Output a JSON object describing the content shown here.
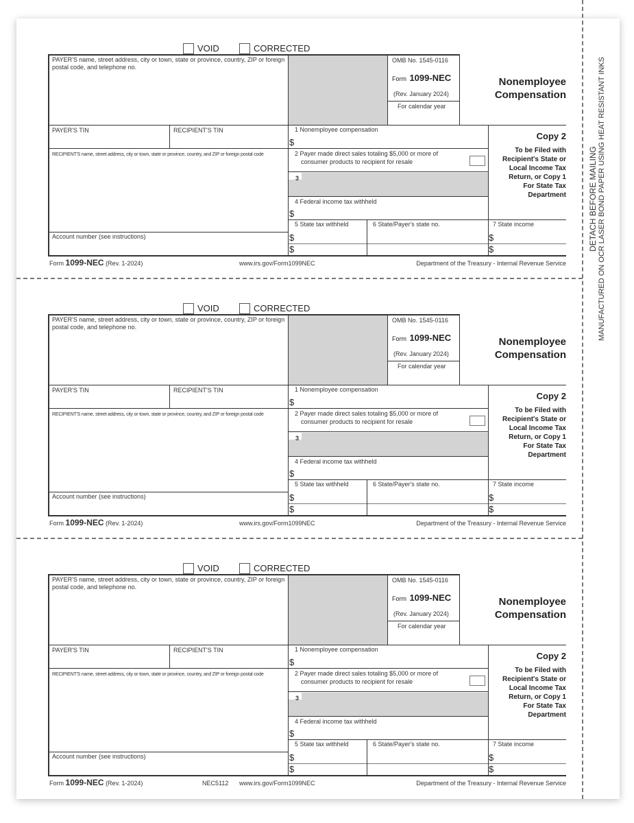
{
  "form": {
    "void_label": "VOID",
    "corrected_label": "CORRECTED",
    "payer_info_label": "PAYER'S name, street address, city or town, state or province, country, ZIP or foreign postal code, and telephone no.",
    "omb_no": "OMB No. 1545-0116",
    "form_word": "Form",
    "form_number": "1099-NEC",
    "revision": "(Rev. January 2024)",
    "calendar_year_label": "For calendar year",
    "title_line1": "Nonemployee",
    "title_line2": "Compensation",
    "payer_tin_label": "PAYER'S TIN",
    "recipient_tin_label": "RECIPIENT'S TIN",
    "recipient_info_label": "RECIPIENT'S name, street address, city or town, state or province, country, and ZIP or foreign postal code",
    "account_number_label": "Account number (see instructions)",
    "box1_label": "1 Nonemployee compensation",
    "box2_label_line1": "2 Payer made direct sales totaling $5,000 or more of",
    "box2_label_line2": "consumer products to recipient for resale",
    "box3_label": "3",
    "box4_label": "4 Federal income tax withheld",
    "box5_label": "5 State tax withheld",
    "box6_label": "6 State/Payer's state no.",
    "box7_label": "7 State income",
    "dollar_sign": "$",
    "copy_label": "Copy 2",
    "copy_desc": [
      "To be Filed with",
      "Recipient's State or",
      "Local Income Tax",
      "Return, or Copy 1",
      "For State Tax",
      "Department"
    ],
    "footer_form_word": "Form",
    "footer_form_number": "1099-NEC",
    "footer_rev": "(Rev. 1-2024)",
    "footer_url": "www.irs.gov/Form1099NEC",
    "footer_dept": "Department of the Treasury - Internal Revenue Service"
  },
  "forms": [
    {
      "footer_code": ""
    },
    {
      "footer_code": ""
    },
    {
      "footer_code": "NEC5112"
    }
  ],
  "side_text": {
    "line1": "DETACH BEFORE MAILING",
    "line2": "MANUFACTURED ON OCR LASER BOND PAPER USING HEAT RESISTANT INKS"
  }
}
